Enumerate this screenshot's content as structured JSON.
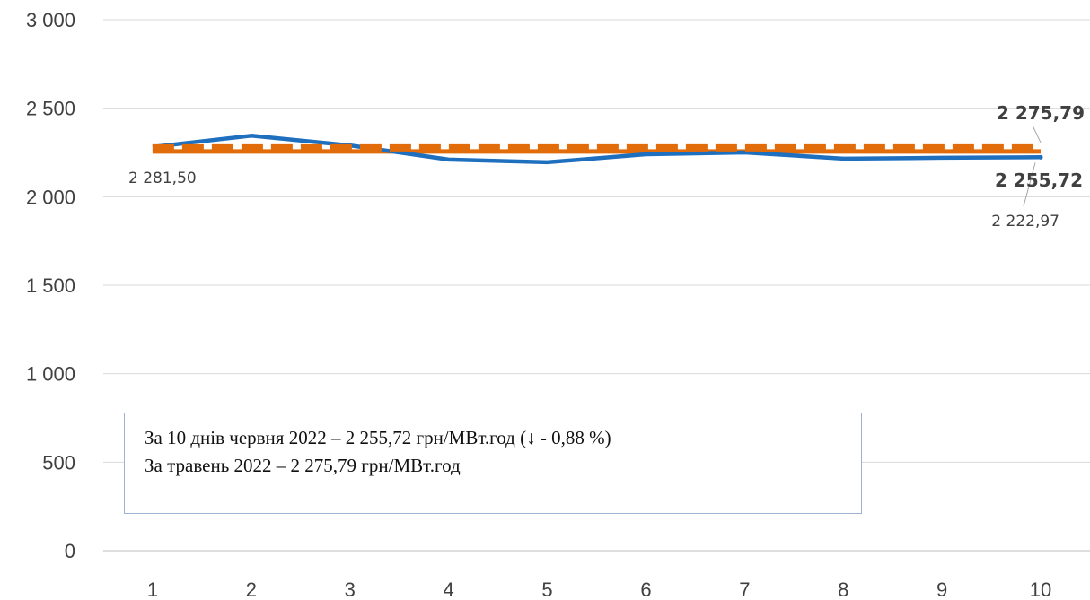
{
  "chart_data": {
    "type": "line",
    "x": [
      1,
      2,
      3,
      4,
      5,
      6,
      7,
      8,
      9,
      10
    ],
    "ylim": [
      0,
      3000
    ],
    "yticks": [
      0,
      500,
      1000,
      1500,
      2000,
      2500,
      3000
    ],
    "ytick_labels": [
      "0",
      "500",
      "1 000",
      "1 500",
      "2 000",
      "2 500",
      "3 000"
    ],
    "grid": true,
    "series": [
      {
        "key": "daily",
        "values": [
          2281.5,
          2345,
          2290,
          2210,
          2195,
          2240,
          2250,
          2215,
          2220,
          2222.97
        ],
        "color": "#1f6fbf",
        "style": "solid",
        "labels": {
          "first": "2 281,50",
          "last": "2 222,97"
        }
      },
      {
        "key": "may_average",
        "values": [
          2275.79,
          2275.79,
          2275.79,
          2275.79,
          2275.79,
          2275.79,
          2275.79,
          2275.79,
          2275.79,
          2275.79
        ],
        "color": "#e36c0a",
        "style": "dashed",
        "end_label": "2 275,79"
      },
      {
        "key": "june_average",
        "values": [
          2255.72,
          2255.72,
          2255.72,
          2255.72,
          2255.72,
          2255.72,
          2255.72,
          2255.72,
          2255.72,
          2255.72
        ],
        "color": "#e36c0a",
        "style": "solid",
        "end_label": "2 255,72"
      }
    ]
  },
  "annotation": {
    "line1": "За 10 днів червня 2022 – 2 255,72 грн/МВт.год (↓ - 0,88 %)",
    "line2": "За травень 2022 – 2 275,79 грн/МВт.год"
  }
}
